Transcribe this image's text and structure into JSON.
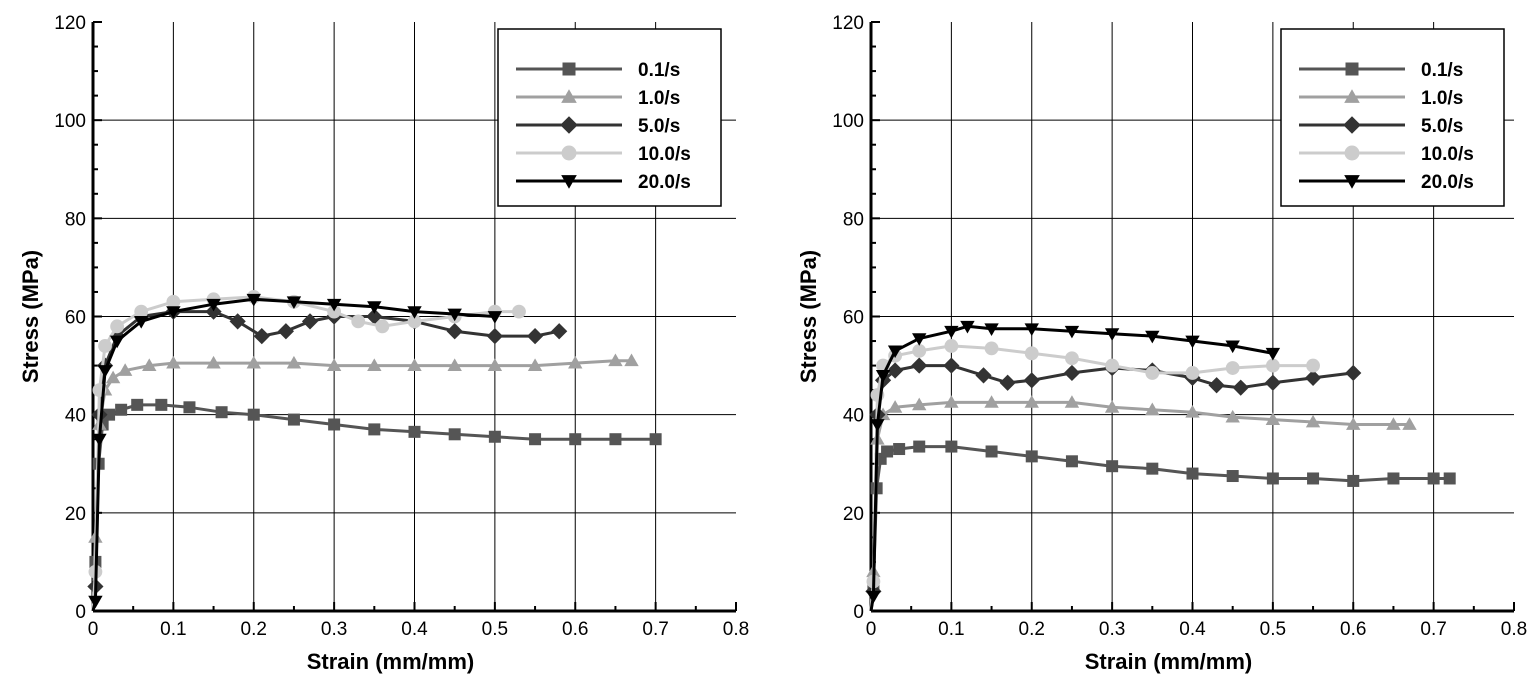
{
  "chart_data": [
    {
      "type": "line",
      "xlabel": "Strain (mm/mm)",
      "ylabel": "Stress (MPa)",
      "xlim": [
        0,
        0.8
      ],
      "ylim": [
        0,
        120
      ],
      "xticks": [
        "0",
        "0.1",
        "0.2",
        "0.3",
        "0.4",
        "0.5",
        "0.6",
        "0.7",
        "0.8"
      ],
      "yticks": [
        "0",
        "20",
        "40",
        "60",
        "80",
        "100",
        "120"
      ],
      "grid": true,
      "legend_position": "top-right",
      "series": [
        {
          "name": "0.1/s",
          "color": "#555555",
          "marker": "square",
          "x": [
            0,
            0.003,
            0.007,
            0.012,
            0.02,
            0.035,
            0.055,
            0.085,
            0.12,
            0.16,
            0.2,
            0.25,
            0.3,
            0.35,
            0.4,
            0.45,
            0.5,
            0.55,
            0.6,
            0.65,
            0.7
          ],
          "y": [
            0,
            10,
            30,
            38,
            40,
            41,
            42,
            42,
            41.5,
            40.5,
            40,
            39,
            38,
            37,
            36.5,
            36,
            35.5,
            35,
            35,
            35,
            35
          ]
        },
        {
          "name": "1.0/s",
          "color": "#a0a0a0",
          "marker": "triangle-up",
          "x": [
            0,
            0.003,
            0.008,
            0.015,
            0.025,
            0.04,
            0.07,
            0.1,
            0.15,
            0.2,
            0.25,
            0.3,
            0.35,
            0.4,
            0.45,
            0.5,
            0.55,
            0.6,
            0.65,
            0.67
          ],
          "y": [
            0,
            15,
            38,
            45,
            47.5,
            49,
            50,
            50.5,
            50.5,
            50.5,
            50.5,
            50,
            50,
            50,
            50,
            50,
            50,
            50.5,
            51,
            51
          ]
        },
        {
          "name": "5.0/s",
          "color": "#333333",
          "marker": "diamond",
          "x": [
            0,
            0.003,
            0.008,
            0.015,
            0.03,
            0.06,
            0.1,
            0.15,
            0.18,
            0.21,
            0.24,
            0.27,
            0.3,
            0.35,
            0.4,
            0.45,
            0.5,
            0.55,
            0.58
          ],
          "y": [
            0,
            5,
            40,
            50,
            56,
            60,
            61,
            61,
            59,
            56,
            57,
            59,
            60,
            60,
            59,
            57,
            56,
            56,
            57
          ]
        },
        {
          "name": "10.0/s",
          "color": "#cccccc",
          "marker": "circle",
          "x": [
            0,
            0.003,
            0.008,
            0.015,
            0.03,
            0.06,
            0.1,
            0.15,
            0.2,
            0.25,
            0.3,
            0.33,
            0.36,
            0.4,
            0.45,
            0.5,
            0.53
          ],
          "y": [
            0,
            8,
            45,
            54,
            58,
            61,
            63,
            63.5,
            64,
            63,
            61,
            59,
            58,
            59,
            60,
            61,
            61
          ]
        },
        {
          "name": "20.0/s",
          "color": "#000000",
          "marker": "triangle-down",
          "x": [
            0,
            0.003,
            0.008,
            0.015,
            0.03,
            0.06,
            0.1,
            0.15,
            0.2,
            0.25,
            0.3,
            0.35,
            0.4,
            0.45,
            0.5
          ],
          "y": [
            0,
            2,
            35,
            49,
            55,
            59,
            61,
            62.5,
            63.5,
            63,
            62.5,
            62,
            61,
            60.5,
            60
          ]
        }
      ]
    },
    {
      "type": "line",
      "xlabel": "Strain (mm/mm)",
      "ylabel": "Stress (MPa)",
      "xlim": [
        0,
        0.8
      ],
      "ylim": [
        0,
        120
      ],
      "xticks": [
        "0",
        "0.1",
        "0.2",
        "0.3",
        "0.4",
        "0.5",
        "0.6",
        "0.7",
        "0.8"
      ],
      "yticks": [
        "0",
        "20",
        "40",
        "60",
        "80",
        "100",
        "120"
      ],
      "grid": true,
      "legend_position": "top-right",
      "series": [
        {
          "name": "0.1/s",
          "color": "#555555",
          "marker": "square",
          "x": [
            0,
            0.003,
            0.007,
            0.012,
            0.02,
            0.035,
            0.06,
            0.1,
            0.15,
            0.2,
            0.25,
            0.3,
            0.35,
            0.4,
            0.45,
            0.5,
            0.55,
            0.6,
            0.65,
            0.7,
            0.72
          ],
          "y": [
            0,
            5,
            25,
            31,
            32.5,
            33,
            33.5,
            33.5,
            32.5,
            31.5,
            30.5,
            29.5,
            29,
            28,
            27.5,
            27,
            27,
            26.5,
            27,
            27,
            27
          ]
        },
        {
          "name": "1.0/s",
          "color": "#a0a0a0",
          "marker": "triangle-up",
          "x": [
            0,
            0.003,
            0.008,
            0.015,
            0.03,
            0.06,
            0.1,
            0.15,
            0.2,
            0.25,
            0.3,
            0.35,
            0.4,
            0.45,
            0.5,
            0.55,
            0.6,
            0.65,
            0.67
          ],
          "y": [
            0,
            8,
            35,
            40,
            41.5,
            42,
            42.5,
            42.5,
            42.5,
            42.5,
            41.5,
            41,
            40.5,
            39.5,
            39,
            38.5,
            38,
            38,
            38
          ]
        },
        {
          "name": "5.0/s",
          "color": "#333333",
          "marker": "diamond",
          "x": [
            0,
            0.003,
            0.008,
            0.015,
            0.03,
            0.06,
            0.1,
            0.14,
            0.17,
            0.2,
            0.25,
            0.3,
            0.35,
            0.4,
            0.43,
            0.46,
            0.5,
            0.55,
            0.6
          ],
          "y": [
            0,
            4,
            40,
            47,
            49,
            50,
            50,
            48,
            46.5,
            47,
            48.5,
            49.5,
            49,
            47.5,
            46,
            45.5,
            46.5,
            47.5,
            48.5
          ]
        },
        {
          "name": "10.0/s",
          "color": "#cccccc",
          "marker": "circle",
          "x": [
            0,
            0.003,
            0.008,
            0.015,
            0.03,
            0.06,
            0.1,
            0.15,
            0.2,
            0.25,
            0.3,
            0.35,
            0.4,
            0.45,
            0.5,
            0.55
          ],
          "y": [
            0,
            6,
            44,
            50,
            52,
            53,
            54,
            53.5,
            52.5,
            51.5,
            50,
            48.5,
            48.5,
            49.5,
            50,
            50
          ]
        },
        {
          "name": "20.0/s",
          "color": "#000000",
          "marker": "triangle-down",
          "x": [
            0,
            0.003,
            0.008,
            0.015,
            0.03,
            0.06,
            0.1,
            0.12,
            0.15,
            0.2,
            0.25,
            0.3,
            0.35,
            0.4,
            0.45,
            0.5
          ],
          "y": [
            0,
            3,
            38,
            48,
            53,
            55.5,
            57,
            58,
            57.5,
            57.5,
            57,
            56.5,
            56,
            55,
            54,
            52.5
          ]
        }
      ]
    }
  ]
}
